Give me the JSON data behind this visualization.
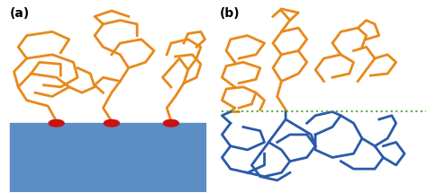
{
  "fig_width": 4.74,
  "fig_height": 2.15,
  "dpi": 100,
  "bg_color": "#ffffff",
  "label_a": "(a)",
  "label_b": "(b)",
  "label_fontsize": 10,
  "label_color": "#000000",
  "surface_color": "#5b8ec5",
  "orange_color": "#e8891a",
  "blue_color": "#2a5aaa",
  "green_dot_color": "#5aaa44",
  "red_dot_color": "#cc1111",
  "orange_lw": 2.0,
  "blue_lw": 2.0
}
